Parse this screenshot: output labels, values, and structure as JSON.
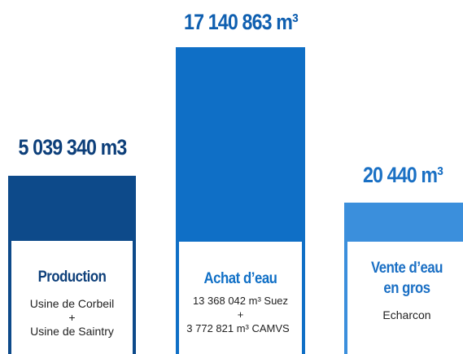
{
  "columns": [
    {
      "value": "5 039 340 m3",
      "title": [
        "Production"
      ],
      "lines": [
        "Usine de Corbeil",
        "+",
        "Usine de Saintry"
      ]
    },
    {
      "value": "17 140 863 m³",
      "title": [
        "Achat d’eau"
      ],
      "lines": [
        "13 368 042 m³ Suez",
        "+",
        "3 772 821 m³ CAMVS"
      ]
    },
    {
      "value": "20 440 m³",
      "title": [
        "Vente d’eau",
        "en gros"
      ],
      "lines": [
        "Echarcon"
      ]
    }
  ]
}
